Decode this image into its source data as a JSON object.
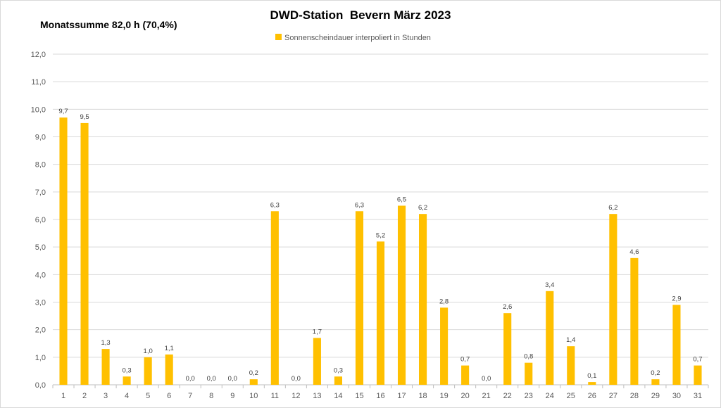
{
  "summary_text": "Monatssumme 82,0 h (70,4%)",
  "chart_data": {
    "type": "bar",
    "title": "DWD-Station  Bevern März 2023",
    "xlabel": "",
    "ylabel": "",
    "ylim": [
      0,
      12
    ],
    "ytick_step": 1,
    "ytick_labels": [
      "0,0",
      "1,0",
      "2,0",
      "3,0",
      "4,0",
      "5,0",
      "6,0",
      "7,0",
      "8,0",
      "9,0",
      "10,0",
      "11,0",
      "12,0"
    ],
    "grid": true,
    "legend_position": "top-center",
    "categories": [
      "1",
      "2",
      "3",
      "4",
      "5",
      "6",
      "7",
      "8",
      "9",
      "10",
      "11",
      "12",
      "13",
      "14",
      "15",
      "16",
      "17",
      "18",
      "19",
      "20",
      "21",
      "22",
      "23",
      "24",
      "25",
      "26",
      "27",
      "28",
      "29",
      "30",
      "31"
    ],
    "series": [
      {
        "name": "Sonnenscheindauer interpoliert in Stunden",
        "color": "#FFC000",
        "values": [
          9.7,
          9.5,
          1.3,
          0.3,
          1.0,
          1.1,
          0.0,
          0.0,
          0.0,
          0.2,
          6.3,
          0.0,
          1.7,
          0.3,
          6.3,
          5.2,
          6.5,
          6.2,
          2.8,
          0.7,
          0.0,
          2.6,
          0.8,
          3.4,
          1.4,
          0.1,
          6.2,
          4.6,
          0.2,
          2.9,
          0.7
        ],
        "data_labels": [
          "9,7",
          "9,5",
          "1,3",
          "0,3",
          "1,0",
          "1,1",
          "0,0",
          "0,0",
          "0,0",
          "0,2",
          "6,3",
          "0,0",
          "1,7",
          "0,3",
          "6,3",
          "5,2",
          "6,5",
          "6,2",
          "2,8",
          "0,7",
          "0,0",
          "2,6",
          "0,8",
          "3,4",
          "1,4",
          "0,1",
          "6,2",
          "4,6",
          "0,2",
          "2,9",
          "0,7"
        ]
      }
    ]
  }
}
